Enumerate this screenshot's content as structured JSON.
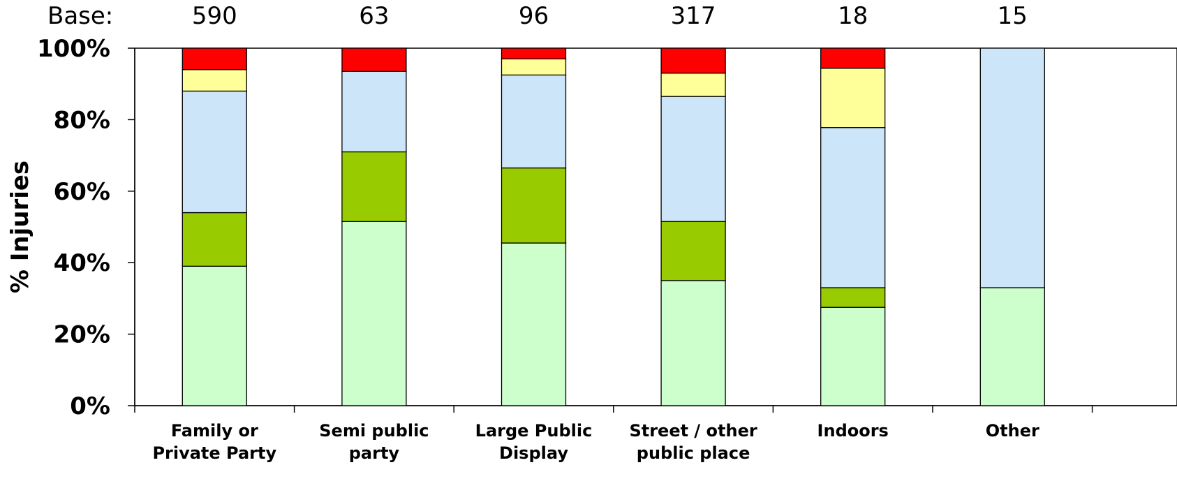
{
  "chart_data": {
    "type": "bar",
    "stacked": true,
    "title": "",
    "xlabel": "",
    "ylabel": "% Injuries",
    "ylim": [
      0,
      100
    ],
    "yticks": [
      "0%",
      "20%",
      "40%",
      "60%",
      "80%",
      "100%"
    ],
    "grid": false,
    "legend": "none",
    "base_label": "Base:",
    "bases": [
      "590",
      "63",
      "96",
      "317",
      "18",
      "15"
    ],
    "categories": [
      [
        "Family or",
        "Private Party"
      ],
      [
        "Semi public",
        "party"
      ],
      [
        "Large Public",
        "Display"
      ],
      [
        "Street / other",
        "public place"
      ],
      [
        "Indoors"
      ],
      [
        "Other"
      ]
    ],
    "series": [
      {
        "color": "#ccffcc",
        "values": [
          39,
          51.5,
          45.5,
          35,
          27.5,
          33
        ]
      },
      {
        "color": "#99cc00",
        "values": [
          15,
          19.5,
          21,
          16.5,
          5.5,
          0
        ]
      },
      {
        "color": "#cce5f8",
        "values": [
          34,
          22.5,
          26,
          35,
          44.8,
          67
        ]
      },
      {
        "color": "#ffff99",
        "values": [
          6,
          0,
          4.5,
          6.5,
          16.6,
          0
        ]
      },
      {
        "color": "#ff0000",
        "values": [
          6,
          6.5,
          3,
          7,
          5.6,
          0
        ]
      }
    ]
  }
}
